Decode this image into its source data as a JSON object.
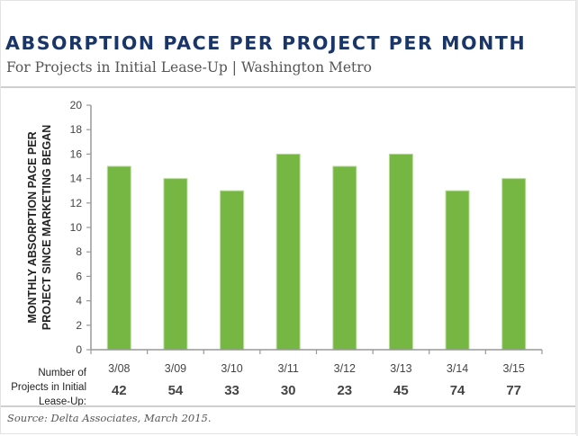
{
  "header": {
    "title": "ABSORPTION PACE PER PROJECT PER MONTH",
    "subtitle": "For Projects in Initial Lease-Up | Washington Metro"
  },
  "footer": {
    "source": "Source: Delta Associates, March 2015."
  },
  "colors": {
    "title": "#1a3668",
    "bar": "#76b744",
    "bar_edge": "#b9dd99",
    "axis": "#999999"
  },
  "chart_data": {
    "type": "bar",
    "title": "ABSORPTION PACE PER PROJECT PER MONTH",
    "subtitle": "For Projects in Initial Lease-Up | Washington Metro",
    "xlabel": "",
    "ylabel_lines": [
      "MONTHLY ABSORPTION PACE PER",
      "PROJECT SINCE MARKETING BEGAN"
    ],
    "ylim": [
      0,
      20
    ],
    "yticks": [
      0,
      2,
      4,
      6,
      8,
      10,
      12,
      14,
      16,
      18,
      20
    ],
    "grid": false,
    "legend": "none",
    "categories": [
      "3/08",
      "3/09",
      "3/10",
      "3/11",
      "3/12",
      "3/13",
      "3/14",
      "3/15"
    ],
    "values": [
      15,
      14,
      13,
      16,
      15,
      16,
      13,
      14
    ],
    "projects_row": {
      "label_lines": [
        "Number of",
        "Projects in Initial",
        "Lease-Up:"
      ],
      "values": [
        42,
        54,
        33,
        30,
        23,
        45,
        74,
        77
      ]
    }
  }
}
